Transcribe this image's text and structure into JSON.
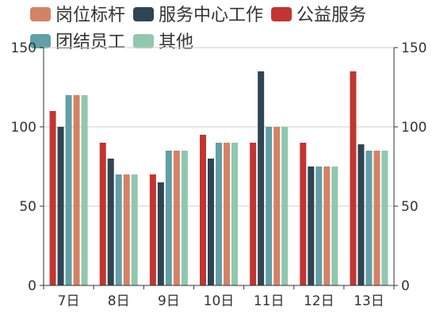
{
  "chart_data": {
    "type": "bar",
    "categories": [
      "7日",
      "8日",
      "9日",
      "10日",
      "11日",
      "12日",
      "13日"
    ],
    "series": [
      {
        "name": "公益服务",
        "color": "#c23531",
        "values": [
          110,
          90,
          70,
          95,
          90,
          90,
          135
        ]
      },
      {
        "name": "服务中心工作",
        "color": "#2f4554",
        "values": [
          100,
          80,
          65,
          80,
          135,
          75,
          89
        ]
      },
      {
        "name": "团结员工",
        "color": "#61a0a8",
        "values": [
          120,
          70,
          85,
          90,
          100,
          75,
          85
        ]
      },
      {
        "name": "岗位标杆",
        "color": "#d48265",
        "values": [
          120,
          70,
          85,
          90,
          100,
          75,
          85
        ]
      },
      {
        "name": "其他",
        "color": "#91c7ae",
        "values": [
          120,
          70,
          85,
          90,
          100,
          75,
          85
        ]
      }
    ],
    "legend": [
      {
        "name": "岗位标杆",
        "color": "#d48265"
      },
      {
        "name": "服务中心工作",
        "color": "#2f4554"
      },
      {
        "name": "公益服务",
        "color": "#c23531"
      },
      {
        "name": "团结员工",
        "color": "#61a0a8"
      },
      {
        "name": "其他",
        "color": "#91c7ae"
      }
    ],
    "legend_position": "top",
    "ylim": [
      0,
      150
    ],
    "y_ticks": [
      "0",
      "50",
      "100",
      "150"
    ],
    "y_tick_values": [
      0,
      50,
      100,
      150
    ],
    "right_y_axis": true,
    "grid": true,
    "title": "",
    "xlabel": "",
    "ylabel": ""
  }
}
